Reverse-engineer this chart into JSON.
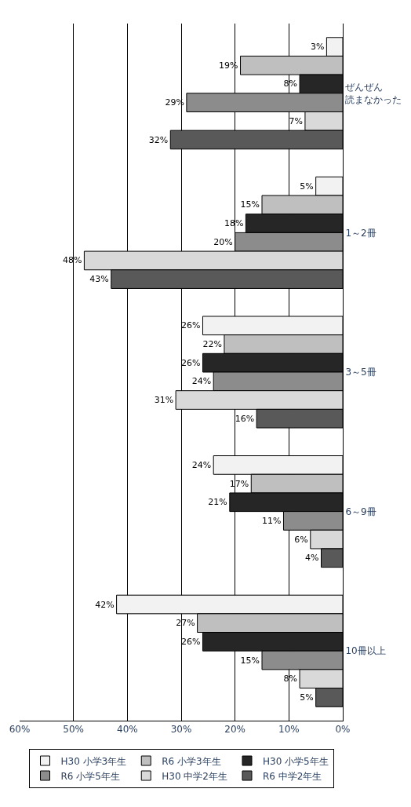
{
  "chart_data": {
    "type": "bar",
    "orientation": "horizontal",
    "categories": [
      "ぜんぜん読まなかった",
      "1～2冊",
      "3～5冊",
      "6～9冊",
      "10冊以上"
    ],
    "series": [
      {
        "name": "H30 小学3年生",
        "color": "#f2f2f2",
        "values": [
          3,
          5,
          26,
          24,
          42
        ],
        "value_labels": [
          "3%",
          "5%",
          "26%",
          "24%",
          "42%"
        ]
      },
      {
        "name": "R6 小学3年生",
        "color": "#bfbfbf",
        "values": [
          19,
          15,
          22,
          17,
          27
        ],
        "value_labels": [
          "19%",
          "15%",
          "22%",
          "17%",
          "27%"
        ]
      },
      {
        "name": "H30 小学5年生",
        "color": "#262626",
        "values": [
          8,
          18,
          26,
          21,
          26
        ],
        "value_labels": [
          "8%",
          "18%",
          "26%",
          "21%",
          "26%"
        ]
      },
      {
        "name": "R6 小学5年生",
        "color": "#8c8c8c",
        "values": [
          29,
          20,
          24,
          11,
          15
        ],
        "value_labels": [
          "29%",
          "20%",
          "24%",
          "11%",
          "15%"
        ]
      },
      {
        "name": "H30 中学2年生",
        "color": "#d9d9d9",
        "values": [
          7,
          48,
          31,
          6,
          8
        ],
        "value_labels": [
          "7%",
          "48%",
          "31%",
          "6%",
          "8%"
        ]
      },
      {
        "name": "R6 中学2年生",
        "color": "#595959",
        "values": [
          32,
          43,
          16,
          4,
          5
        ],
        "value_labels": [
          "32%",
          "43%",
          "16%",
          "4%",
          "5%"
        ]
      }
    ],
    "xlim": [
      60,
      0
    ],
    "xticks": [
      {
        "value": 60,
        "label": "60%"
      },
      {
        "value": 50,
        "label": "50%"
      },
      {
        "value": 40,
        "label": "40%"
      },
      {
        "value": 30,
        "label": "30%"
      },
      {
        "value": 20,
        "label": "20%"
      },
      {
        "value": 10,
        "label": "10%"
      },
      {
        "value": 0,
        "label": "0%"
      }
    ],
    "grid": "x",
    "legend": "bottom"
  }
}
